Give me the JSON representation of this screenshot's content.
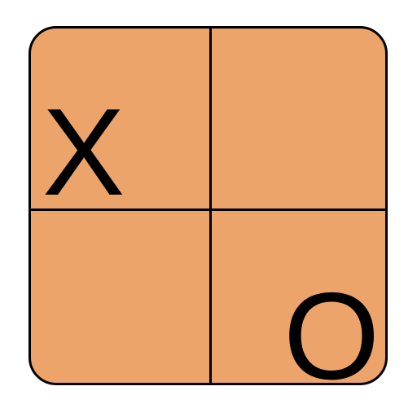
{
  "colors": {
    "board_fill": "#eda46a",
    "grid_line": "#000000",
    "mark": "#000000",
    "background": "#ffffff"
  },
  "board": {
    "size": "2x2",
    "cells": [
      {
        "position": "top-left",
        "mark": "X"
      },
      {
        "position": "top-right",
        "mark": ""
      },
      {
        "position": "bottom-left",
        "mark": ""
      },
      {
        "position": "bottom-right",
        "mark": "O"
      }
    ]
  }
}
